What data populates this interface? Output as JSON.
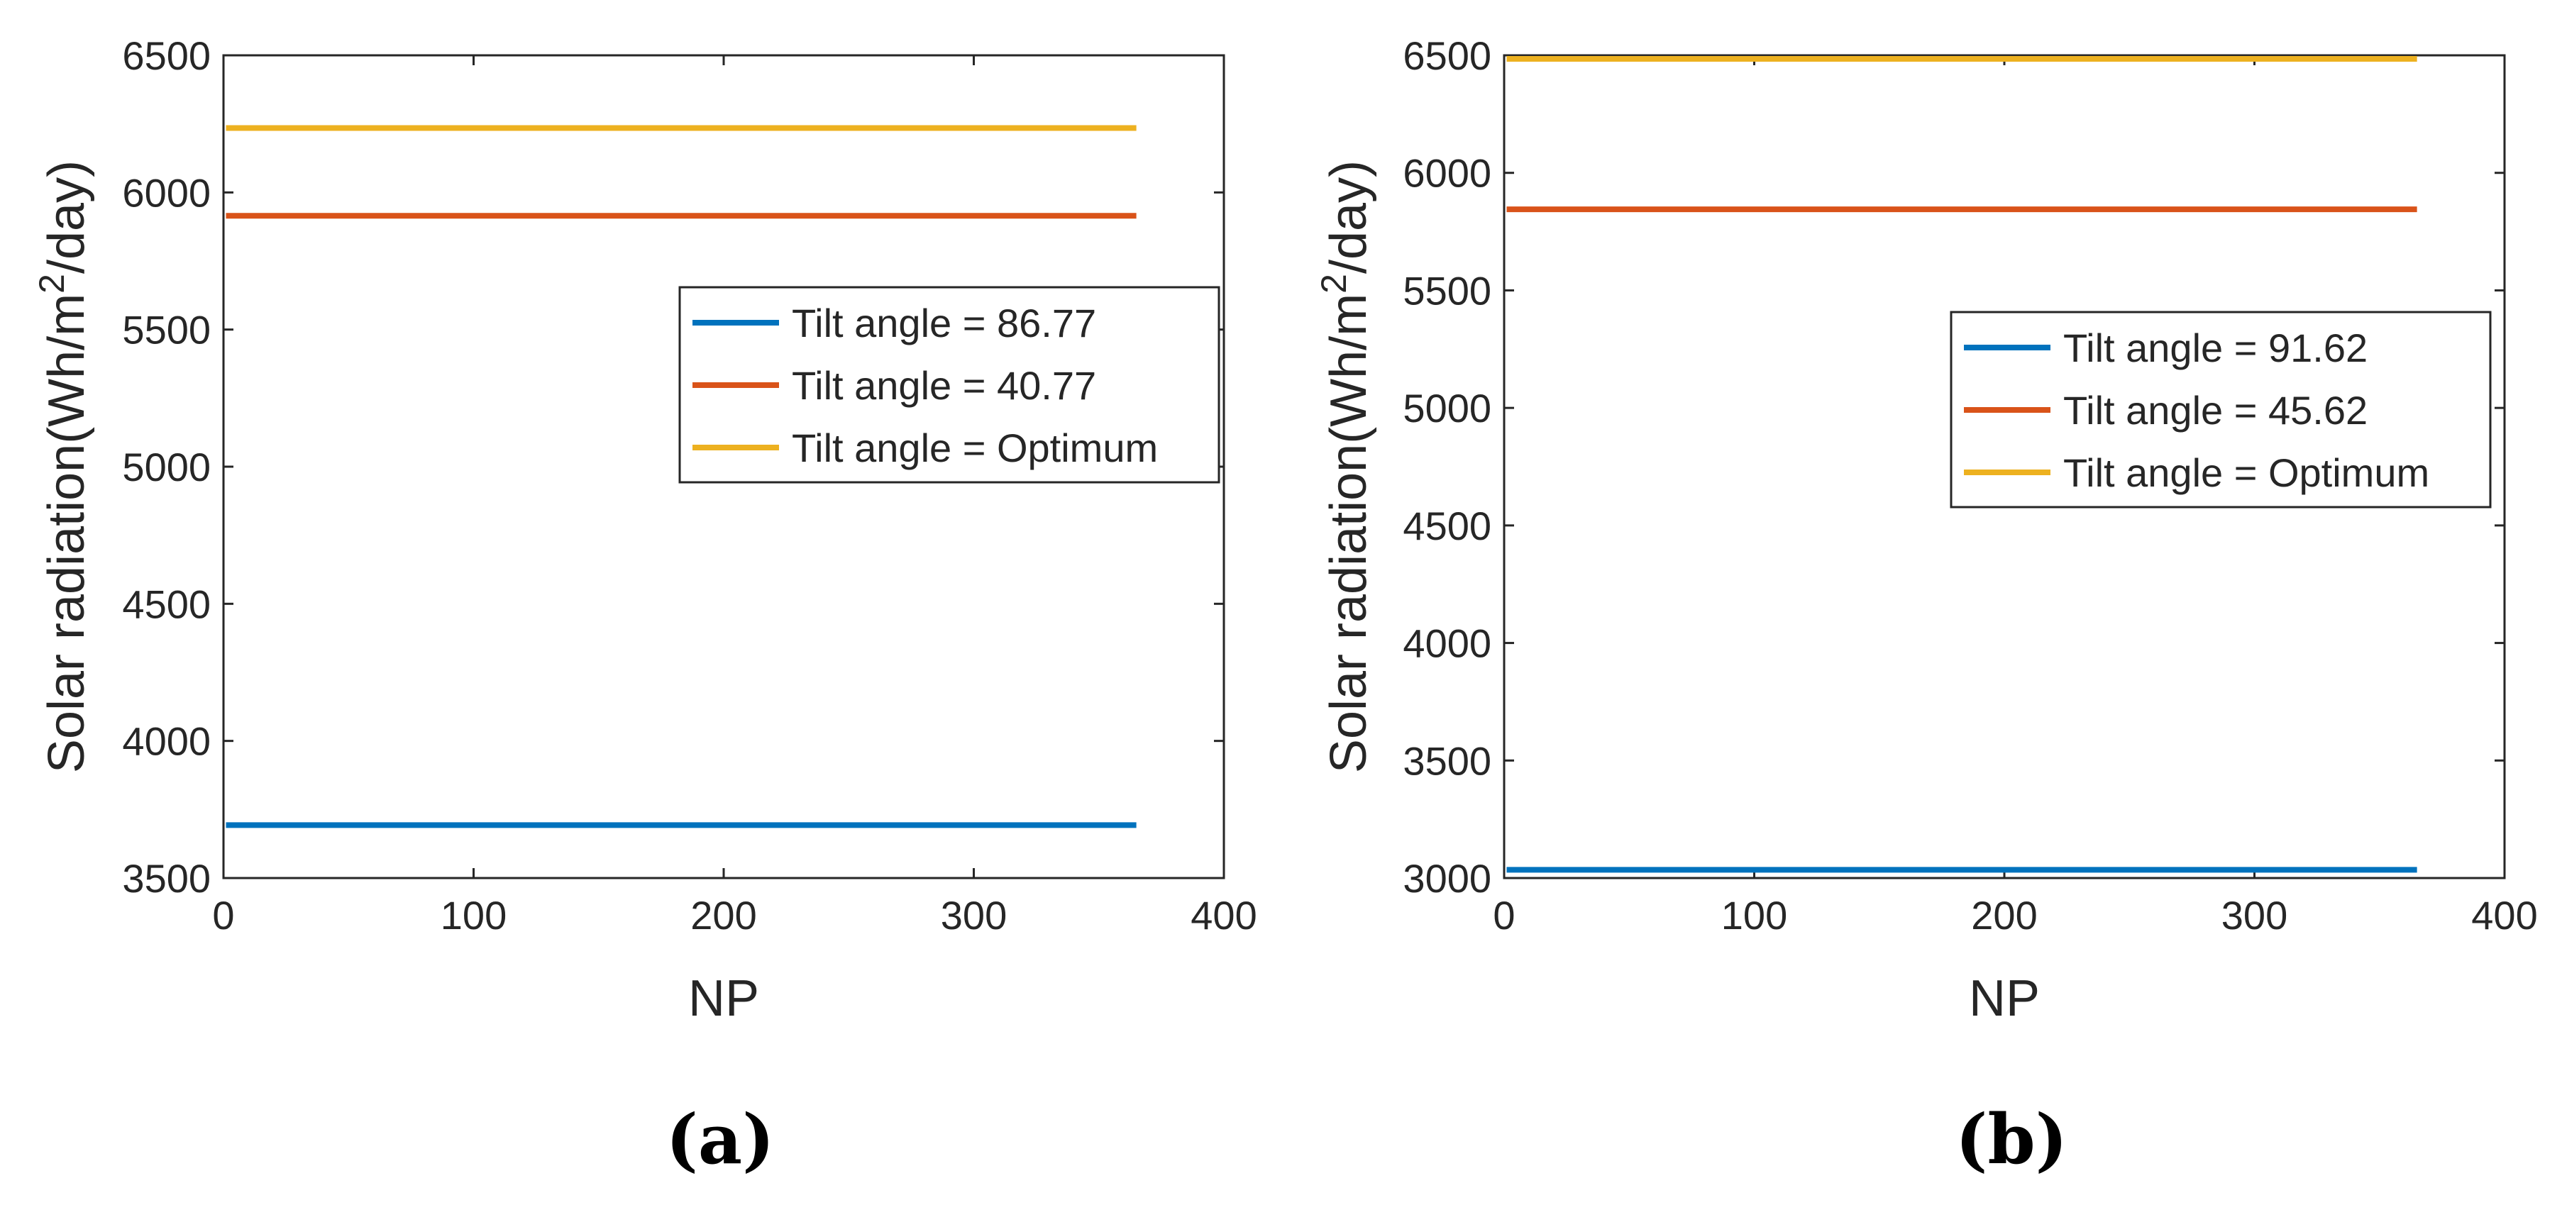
{
  "chart_data": [
    {
      "type": "line",
      "panel_label": "(a)",
      "xlabel": "NP",
      "ylabel_prefix": "Solar radiation(Wh/m",
      "ylabel_sup": "2",
      "ylabel_suffix": "/day)",
      "xlim": [
        0,
        400
      ],
      "ylim": [
        3500,
        6500
      ],
      "xticks": [
        0,
        100,
        200,
        300,
        400
      ],
      "yticks": [
        3500,
        4000,
        4500,
        5000,
        5500,
        6000,
        6500
      ],
      "legend_position": "right-middle-upper",
      "series": [
        {
          "name": "Tilt angle = 86.77",
          "color": "#0072BD",
          "x": [
            1,
            365
          ],
          "y": [
            3693,
            3693
          ]
        },
        {
          "name": "Tilt angle = 40.77",
          "color": "#D95319",
          "x": [
            1,
            365
          ],
          "y": [
            5915,
            5915
          ]
        },
        {
          "name": "Tilt angle = Optimum",
          "color": "#EDB120",
          "x": [
            1,
            365
          ],
          "y": [
            6235,
            6235
          ]
        }
      ]
    },
    {
      "type": "line",
      "panel_label": "(b)",
      "xlabel": "NP",
      "ylabel_prefix": "Solar radiation(Wh/m",
      "ylabel_sup": "2",
      "ylabel_suffix": "/day)",
      "xlim": [
        0,
        400
      ],
      "ylim": [
        3000,
        6500
      ],
      "xticks": [
        0,
        100,
        200,
        300,
        400
      ],
      "yticks": [
        3000,
        3500,
        4000,
        4500,
        5000,
        5500,
        6000,
        6500
      ],
      "legend_position": "right-middle",
      "series": [
        {
          "name": "Tilt angle = 91.62",
          "color": "#0072BD",
          "x": [
            1,
            365
          ],
          "y": [
            3035,
            3035
          ]
        },
        {
          "name": "Tilt angle = 45.62",
          "color": "#D95319",
          "x": [
            1,
            365
          ],
          "y": [
            5845,
            5845
          ]
        },
        {
          "name": "Tilt angle = Optimum",
          "color": "#EDB120",
          "x": [
            1,
            365
          ],
          "y": [
            6485,
            6485
          ]
        }
      ]
    }
  ]
}
